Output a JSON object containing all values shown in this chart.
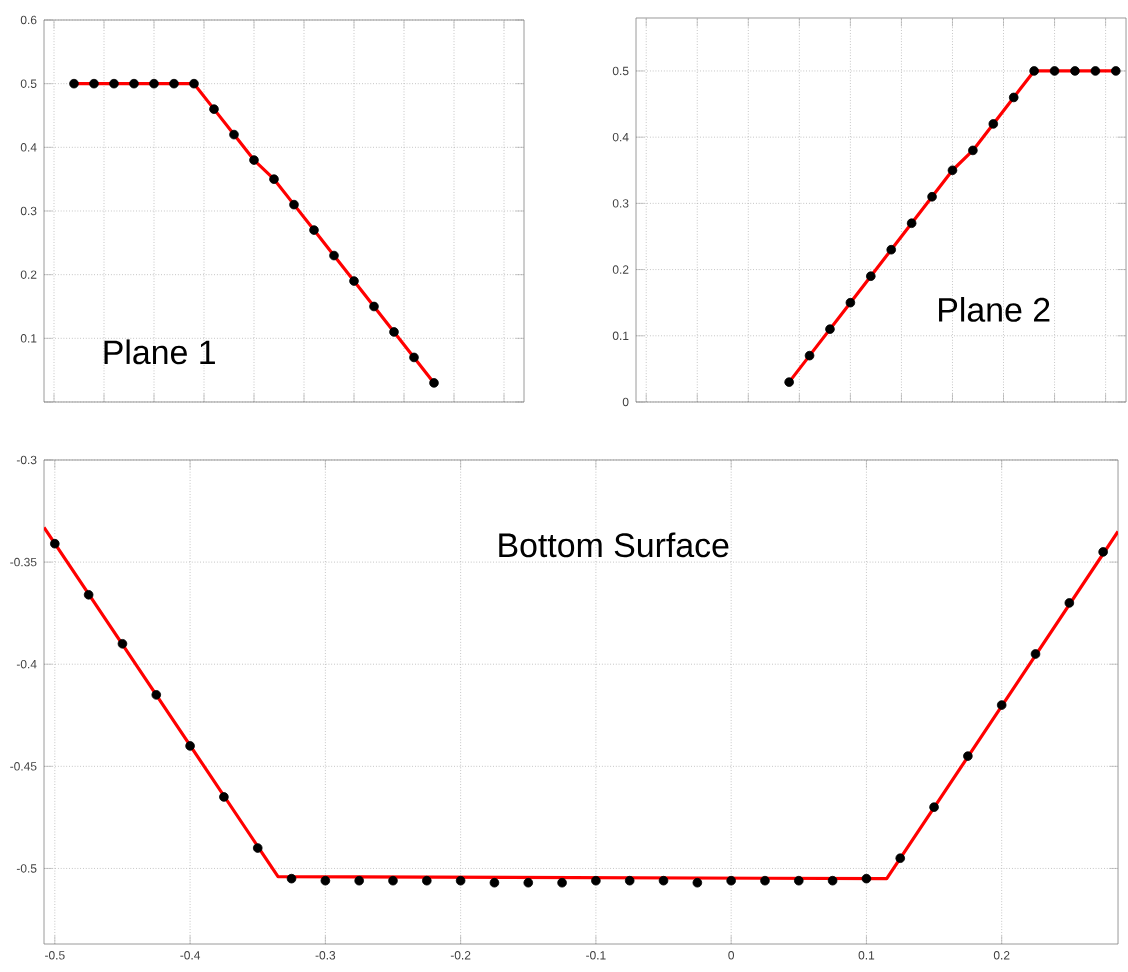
{
  "chart_data": [
    {
      "type": "scatter",
      "title": "Plane 1",
      "categories": [
        null,
        null,
        null,
        null,
        null,
        null,
        null,
        null,
        null,
        null,
        null,
        null,
        null,
        null,
        null,
        null,
        null,
        null,
        null,
        null,
        null,
        null,
        null,
        null
      ],
      "series": [
        {
          "type": "scatter",
          "color": "#000000",
          "marker": "circle",
          "values": [
            null,
            0.5,
            0.5,
            0.5,
            0.5,
            0.5,
            0.5,
            0.5,
            0.46,
            0.42,
            0.38,
            0.35,
            0.31,
            0.27,
            0.23,
            0.19,
            0.15,
            0.11,
            0.07,
            0.03,
            null,
            null,
            null,
            null
          ]
        },
        {
          "type": "line",
          "color": "#ff0000",
          "values": [
            null,
            0.5,
            0.5,
            0.5,
            0.5,
            0.5,
            0.5,
            0.5,
            0.46,
            0.42,
            0.38,
            0.35,
            0.31,
            0.27,
            0.23,
            0.19,
            0.15,
            0.11,
            0.07,
            0.03,
            null,
            null,
            null,
            null
          ]
        }
      ],
      "ylim": [
        0,
        0.6
      ],
      "yticks": [
        {
          "value": 0,
          "label": null
        },
        0.1,
        0.2,
        0.3,
        0.4,
        0.5,
        0.6
      ],
      "grid": true,
      "tick_labels": "y"
    },
    {
      "type": "scatter",
      "title": "Plane 2",
      "categories": [
        null,
        null,
        null,
        null,
        null,
        null,
        null,
        null,
        null,
        null,
        null,
        null,
        null,
        null,
        null,
        null,
        null,
        null,
        null,
        null,
        null,
        null,
        null,
        null
      ],
      "series": [
        {
          "type": "scatter",
          "color": "#000000",
          "marker": "circle",
          "values": [
            null,
            null,
            null,
            null,
            null,
            null,
            null,
            0.03,
            0.07,
            0.11,
            0.15,
            0.19,
            0.23,
            0.27,
            0.31,
            0.35,
            0.38,
            0.42,
            0.46,
            0.5,
            0.5,
            0.5,
            0.5,
            0.5
          ]
        },
        {
          "type": "line",
          "color": "#ff0000",
          "values": [
            null,
            null,
            null,
            null,
            null,
            null,
            null,
            0.03,
            0.07,
            0.11,
            0.15,
            0.19,
            0.23,
            0.27,
            0.31,
            0.35,
            0.38,
            0.42,
            0.46,
            0.5,
            0.5,
            0.5,
            0.5,
            0.5
          ]
        }
      ],
      "ylim": [
        0,
        0.58
      ],
      "yticks": [
        0,
        0.1,
        0.2,
        0.3,
        0.4,
        0.5
      ],
      "grid": true,
      "tick_labels": "y"
    },
    {
      "type": "scatter",
      "title": "Bottom Surface",
      "series": [
        {
          "type": "scatter",
          "color": "#000000",
          "marker": "circle",
          "x": [
            -0.5,
            -0.475,
            -0.45,
            -0.425,
            -0.4,
            -0.375,
            -0.35,
            -0.325,
            -0.3,
            -0.275,
            -0.25,
            -0.225,
            -0.2,
            -0.175,
            -0.15,
            -0.125,
            -0.1,
            -0.075,
            -0.05,
            -0.025,
            0,
            0.025,
            0.05,
            0.075,
            0.1,
            0.125,
            0.15,
            0.175,
            0.2,
            0.225,
            0.25,
            0.275
          ],
          "values": [
            -0.341,
            -0.366,
            -0.39,
            -0.415,
            -0.44,
            -0.465,
            -0.49,
            -0.505,
            -0.506,
            -0.506,
            -0.506,
            -0.506,
            -0.506,
            -0.507,
            -0.507,
            -0.507,
            -0.506,
            -0.506,
            -0.506,
            -0.507,
            -0.506,
            -0.506,
            -0.506,
            -0.506,
            -0.505,
            -0.495,
            -0.47,
            -0.445,
            -0.42,
            -0.395,
            -0.37,
            -0.345
          ]
        },
        {
          "type": "line",
          "color": "#ff0000",
          "x": [
            -0.508,
            -0.335,
            0.115,
            0.286
          ],
          "values": [
            -0.333,
            -0.504,
            -0.505,
            -0.335
          ]
        }
      ],
      "xlim": [
        -0.508,
        0.286
      ],
      "xticks": [
        -0.5,
        -0.4,
        -0.3,
        -0.2,
        -0.1,
        0,
        0.1,
        0.2
      ],
      "ylim": [
        -0.537,
        -0.3
      ],
      "yticks": [
        -0.5,
        -0.45,
        -0.4,
        -0.35,
        -0.3
      ],
      "grid": true
    }
  ]
}
